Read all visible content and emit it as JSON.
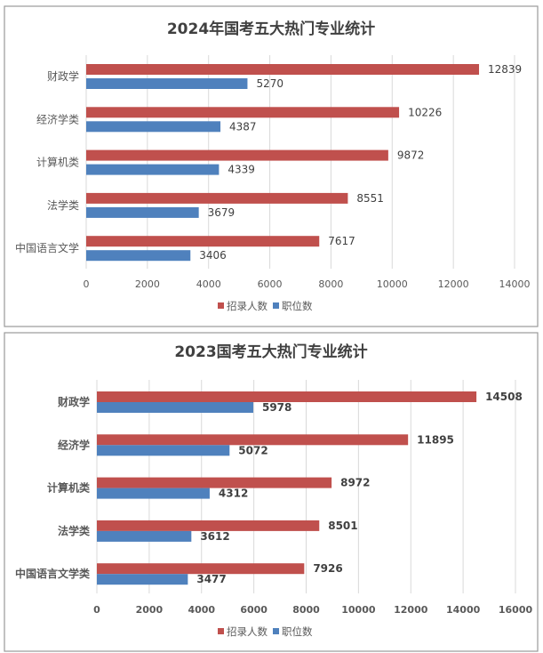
{
  "colors": {
    "recruits": "#c0504d",
    "positions": "#4f81bd"
  },
  "chart_data": [
    {
      "type": "bar",
      "orientation": "horizontal",
      "title": "2024年国考五大热门专业统计",
      "categories": [
        "财政学",
        "经济学类",
        "计算机类",
        "法学类",
        "中国语言文学"
      ],
      "series": [
        {
          "name": "招录人数",
          "values": [
            12839,
            10226,
            9872,
            8551,
            7617
          ]
        },
        {
          "name": "职位数",
          "values": [
            5270,
            4387,
            4339,
            3679,
            3406
          ]
        }
      ],
      "xlim": [
        0,
        14000
      ],
      "ticks": [
        "0",
        "2000",
        "4000",
        "6000",
        "8000",
        "10000",
        "12000",
        "14000"
      ],
      "grid": true,
      "legend": "bottom"
    },
    {
      "type": "bar",
      "orientation": "horizontal",
      "title": "2023国考五大热门专业统计",
      "categories": [
        "财政学",
        "经济学",
        "计算机类",
        "法学类",
        "中国语言文学类"
      ],
      "series": [
        {
          "name": "招录人数",
          "values": [
            14508,
            11895,
            8972,
            8501,
            7926
          ]
        },
        {
          "name": "职位数",
          "values": [
            5978,
            5072,
            4312,
            3612,
            3477
          ]
        }
      ],
      "xlim": [
        0,
        16000
      ],
      "ticks": [
        "0",
        "2000",
        "4000",
        "6000",
        "8000",
        "10000",
        "12000",
        "14000",
        "16000"
      ],
      "grid": true,
      "legend": "bottom"
    }
  ]
}
